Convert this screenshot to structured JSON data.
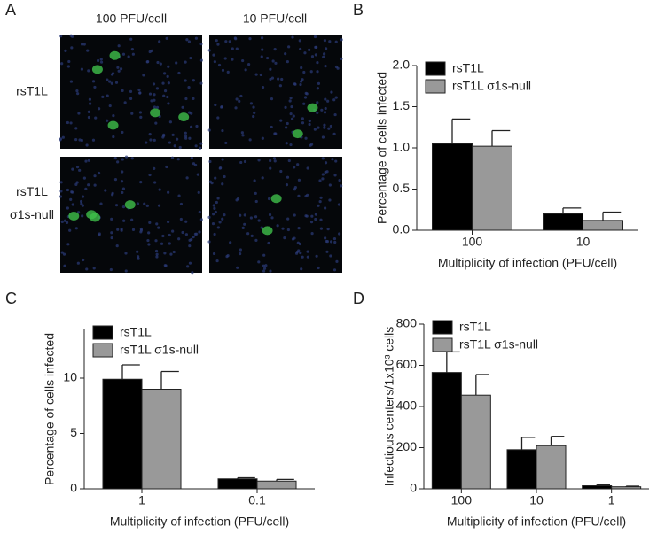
{
  "panel_labels": [
    "A",
    "B",
    "C",
    "D"
  ],
  "panel_a": {
    "column_labels": [
      "100 PFU/cell",
      "10 PFU/cell"
    ],
    "row_labels": [
      "rsT1L",
      "rsT1L\nσ1s-null"
    ]
  },
  "chart_data": [
    {
      "type": "bar",
      "ylabel": "Percentage of cells infected",
      "xlabel": "Multiplicity of infection (PFU/cell)",
      "categories": [
        "100",
        "10"
      ],
      "series": [
        {
          "name": "rsT1L",
          "color": "#000000",
          "values": [
            1.05,
            0.2
          ],
          "errors": [
            0.3,
            0.07
          ]
        },
        {
          "name": "rsT1L σ1s-null",
          "color": "#999999",
          "values": [
            1.02,
            0.12
          ],
          "errors": [
            0.19,
            0.1
          ]
        }
      ],
      "ylim": [
        0,
        2
      ],
      "yticks": [
        {
          "value": 0,
          "label": "0.0"
        },
        {
          "value": 0.5,
          "label": "0.5"
        },
        {
          "value": 1,
          "label": "1.0"
        },
        {
          "value": 1.5,
          "label": "1.5"
        },
        {
          "value": 2,
          "label": "2.0"
        }
      ],
      "legend": "upper left"
    },
    {
      "type": "bar",
      "ylabel": "Percentage of cells infected",
      "xlabel": "Multiplicity of infection (PFU/cell)",
      "categories": [
        "1",
        "0.1"
      ],
      "series": [
        {
          "name": "rsT1L",
          "color": "#000000",
          "values": [
            9.9,
            0.9
          ],
          "errors": [
            1.3,
            0.1
          ]
        },
        {
          "name": "rsT1L σ1s-null",
          "color": "#999999",
          "values": [
            9.0,
            0.7
          ],
          "errors": [
            1.6,
            0.15
          ]
        }
      ],
      "ylim": [
        0,
        14.4
      ],
      "yticks": [
        0,
        5,
        10
      ],
      "legend": "upper left"
    },
    {
      "type": "bar",
      "ylabel": "Infectious centers/1x10³ cells",
      "xlabel": "Multiplicity of infection (PFU/cell)",
      "categories": [
        "100",
        "10",
        "1"
      ],
      "series": [
        {
          "name": "rsT1L",
          "color": "#000000",
          "values": [
            565,
            190,
            15
          ],
          "errors": [
            100,
            60,
            5
          ]
        },
        {
          "name": "rsT1L σ1s-null",
          "color": "#999999",
          "values": [
            455,
            210,
            10
          ],
          "errors": [
            100,
            45,
            3
          ]
        }
      ],
      "ylim": [
        0,
        800
      ],
      "yticks": [
        0,
        200,
        400,
        600,
        800
      ],
      "legend": "upper left"
    }
  ]
}
